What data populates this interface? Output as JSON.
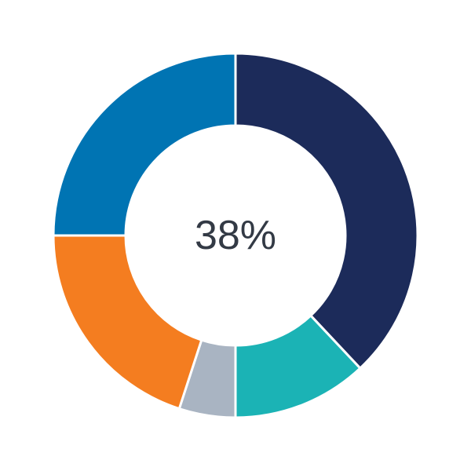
{
  "chart_data": {
    "type": "pie",
    "variant": "donut",
    "center_label": "38%",
    "start": "top",
    "direction": "clockwise",
    "slices": [
      {
        "value": 38,
        "color": "#1c2b5a"
      },
      {
        "value": 12,
        "color": "#1bb3b5"
      },
      {
        "value": 5,
        "color": "#a9b4c2"
      },
      {
        "value": 20,
        "color": "#f47d20"
      },
      {
        "value": 25,
        "color": "#0074b3"
      }
    ]
  }
}
